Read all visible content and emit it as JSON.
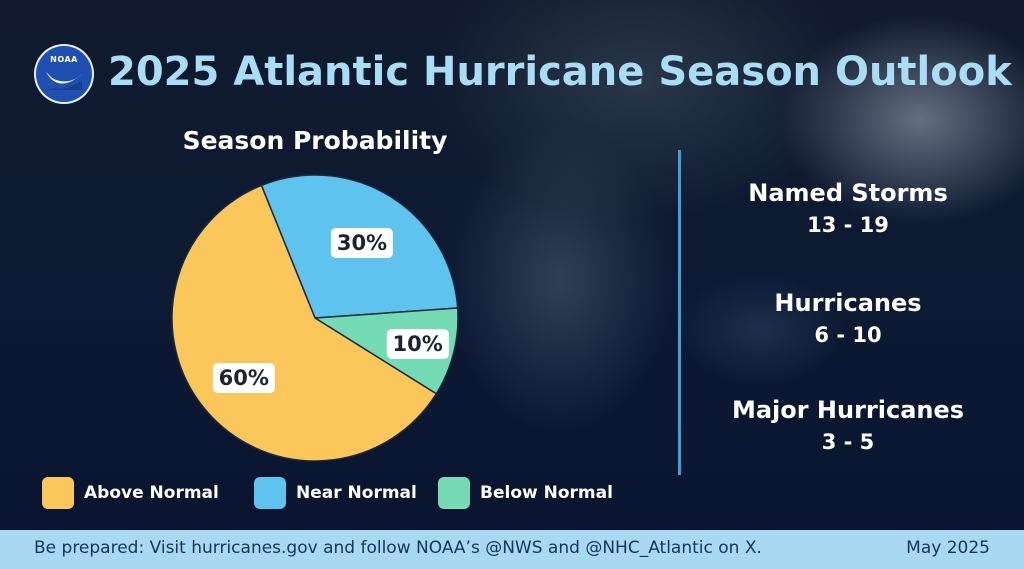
{
  "logo_text": "NOAA",
  "title": "2025 Atlantic Hurricane Season Outlook",
  "chart_data": {
    "type": "pie",
    "title": "Season Probability",
    "slices": [
      {
        "label": "Near Normal",
        "value": 30,
        "display": "30%",
        "color": "#5ec4ee"
      },
      {
        "label": "Below Normal",
        "value": 10,
        "display": "10%",
        "color": "#74dbb4"
      },
      {
        "label": "Above Normal",
        "value": 60,
        "display": "60%",
        "color": "#fbc65a"
      }
    ],
    "legend": [
      {
        "label": "Above Normal",
        "color": "#fbc65a"
      },
      {
        "label": "Near Normal",
        "color": "#5ec4ee"
      },
      {
        "label": "Below Normal",
        "color": "#74dbb4"
      }
    ],
    "legend_position": "bottom"
  },
  "stats": [
    {
      "label": "Named Storms",
      "value": "13 - 19"
    },
    {
      "label": "Hurricanes",
      "value": "6 - 10"
    },
    {
      "label": "Major Hurricanes",
      "value": "3 - 5"
    }
  ],
  "footer": {
    "text": "Be prepared: Visit hurricanes.gov and follow NOAA’s @NWS and @NHC_Atlantic on X.",
    "date": "May 2025"
  },
  "colors": {
    "title": "#a9dcf5",
    "divider": "#3f9fd6",
    "footer_bg": "#a9d9f2",
    "footer_text": "#17345b"
  }
}
